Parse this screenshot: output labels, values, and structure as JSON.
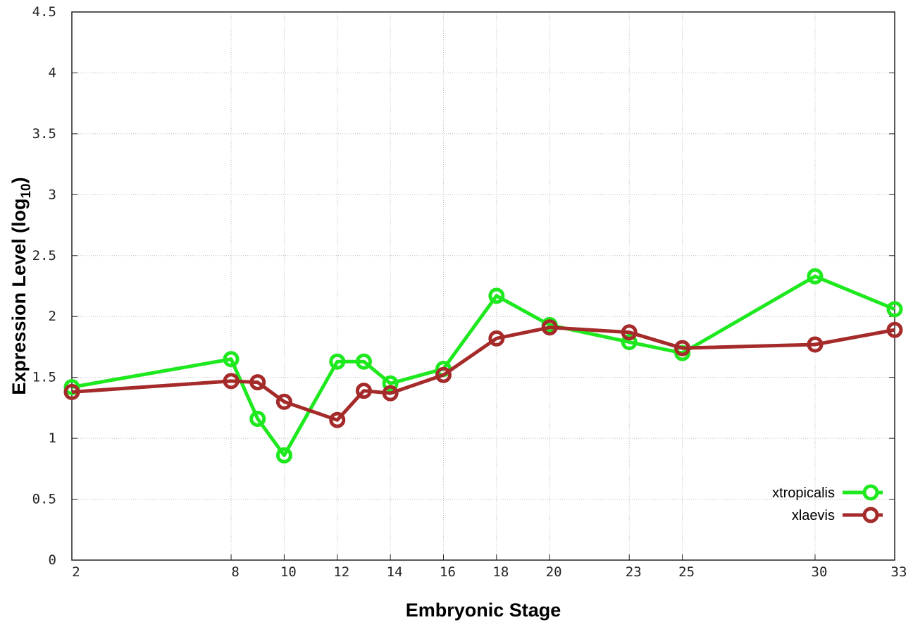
{
  "chart_data": {
    "type": "line",
    "title": "",
    "xlabel": "Embryonic Stage",
    "ylabel": "Expression Level (log",
    "ylabel_subscript": "10",
    "ylabel_suffix": ")",
    "xlim": [
      2,
      33
    ],
    "ylim": [
      0,
      4.5
    ],
    "x_ticks": [
      2,
      8,
      10,
      12,
      14,
      16,
      18,
      20,
      23,
      25,
      30,
      33
    ],
    "y_ticks": [
      0,
      0.5,
      1,
      1.5,
      2,
      2.5,
      3,
      3.5,
      4,
      4.5
    ],
    "y_tick_labels": [
      "0",
      "0.5",
      "1",
      "1.5",
      "2",
      "2.5",
      "3",
      "3.5",
      "4",
      "4.5"
    ],
    "grid": true,
    "legend_position": "bottom-right",
    "x": [
      2,
      8,
      9,
      10,
      12,
      13,
      14,
      16,
      18,
      20,
      23,
      25,
      30,
      33
    ],
    "series": [
      {
        "name": "xtropicalis",
        "color": "#1ee81e",
        "values": [
          1.42,
          1.65,
          1.16,
          0.86,
          1.63,
          1.63,
          1.45,
          1.57,
          2.17,
          1.93,
          1.79,
          1.7,
          2.33,
          2.06
        ]
      },
      {
        "name": "xlaevis",
        "color": "#a52a2a",
        "values": [
          1.38,
          1.47,
          1.46,
          1.3,
          1.15,
          1.39,
          1.37,
          1.52,
          1.82,
          1.91,
          1.87,
          1.74,
          1.77,
          1.89
        ]
      }
    ]
  }
}
